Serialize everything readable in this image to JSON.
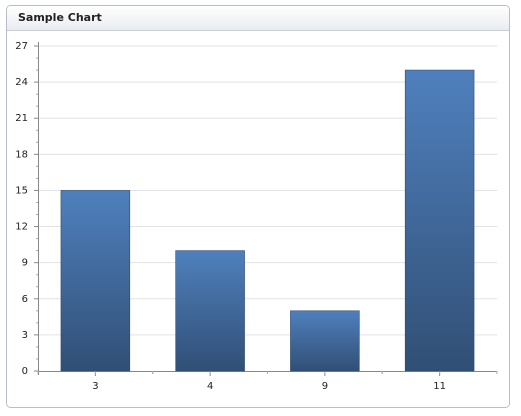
{
  "chart_data": {
    "type": "bar",
    "title": "Sample Chart",
    "categories": [
      "3",
      "4",
      "9",
      "11"
    ],
    "values": [
      15,
      10,
      5,
      25
    ],
    "color": "#4f80bd",
    "ylim": [
      0,
      27
    ],
    "yticks": [
      0,
      3,
      6,
      9,
      12,
      15,
      18,
      21,
      24,
      27
    ],
    "grid": true
  }
}
